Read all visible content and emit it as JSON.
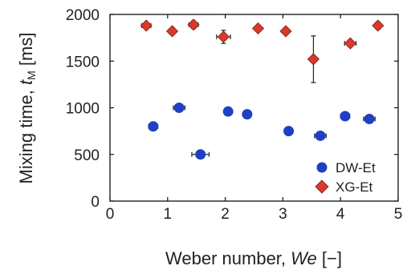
{
  "chart_data": {
    "type": "scatter",
    "xlabel_main": "Weber number, ",
    "xlabel_symbol": "We",
    "xlabel_unit": " [−]",
    "ylabel_main": "Mixing time, ",
    "ylabel_symbol": "t",
    "ylabel_sub": "M",
    "ylabel_unit": " [ms]",
    "xlim": [
      0,
      5
    ],
    "ylim": [
      0,
      2000
    ],
    "x_ticks": [
      "0",
      "1",
      "2",
      "3",
      "4",
      "5"
    ],
    "y_ticks": [
      "0",
      "500",
      "1000",
      "1500",
      "2000"
    ],
    "legend_position": "bottom-right",
    "series": [
      {
        "name": "DW-Et",
        "marker": "circle",
        "color": "#1f3fc4",
        "points": [
          {
            "x": 0.75,
            "y": 800,
            "xerr": 0.08,
            "yerr": 0
          },
          {
            "x": 1.2,
            "y": 1000,
            "xerr": 0.1,
            "yerr": 0
          },
          {
            "x": 1.57,
            "y": 500,
            "xerr": 0.15,
            "yerr": 0
          },
          {
            "x": 2.05,
            "y": 960,
            "xerr": 0.05,
            "yerr": 0
          },
          {
            "x": 2.38,
            "y": 930,
            "xerr": 0.05,
            "yerr": 0
          },
          {
            "x": 3.1,
            "y": 750,
            "xerr": 0.05,
            "yerr": 0
          },
          {
            "x": 3.65,
            "y": 700,
            "xerr": 0.1,
            "yerr": 0
          },
          {
            "x": 4.08,
            "y": 910,
            "xerr": 0.08,
            "yerr": 0
          },
          {
            "x": 4.5,
            "y": 880,
            "xerr": 0.1,
            "yerr": 0
          }
        ]
      },
      {
        "name": "XG-Et",
        "marker": "diamond",
        "color": "#d93a2b",
        "points": [
          {
            "x": 0.63,
            "y": 1880,
            "xerr": 0.08,
            "yerr": 0
          },
          {
            "x": 1.08,
            "y": 1820,
            "xerr": 0.05,
            "yerr": 0
          },
          {
            "x": 1.45,
            "y": 1890,
            "xerr": 0.08,
            "yerr": 40
          },
          {
            "x": 1.97,
            "y": 1760,
            "xerr": 0.12,
            "yerr": 70
          },
          {
            "x": 2.57,
            "y": 1850,
            "xerr": 0.05,
            "yerr": 0
          },
          {
            "x": 3.05,
            "y": 1820,
            "xerr": 0.05,
            "yerr": 0
          },
          {
            "x": 3.53,
            "y": 1520,
            "xerr": 0.05,
            "yerr": 250
          },
          {
            "x": 4.17,
            "y": 1690,
            "xerr": 0.1,
            "yerr": 0
          },
          {
            "x": 4.65,
            "y": 1880,
            "xerr": 0.05,
            "yerr": 40
          }
        ]
      }
    ]
  }
}
